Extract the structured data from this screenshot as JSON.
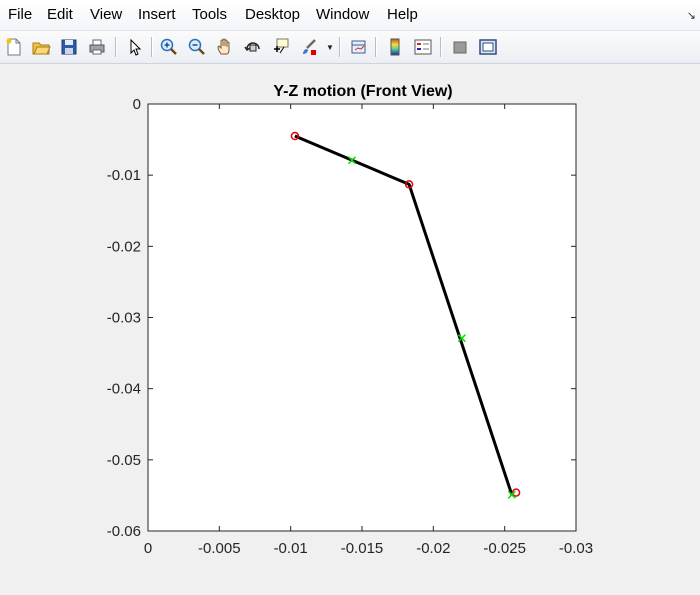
{
  "menu": {
    "items": [
      "File",
      "Edit",
      "View",
      "Insert",
      "Tools",
      "Desktop",
      "Window",
      "Help"
    ]
  },
  "toolbar": {
    "buttons": [
      "new-figure-icon",
      "open-file-icon",
      "save-icon",
      "print-icon",
      "edit-plot-icon",
      "zoom-in-icon",
      "zoom-out-icon",
      "pan-icon",
      "rotate-3d-icon",
      "data-cursor-icon",
      "brush-icon",
      "link-plot-icon",
      "colorbar-icon",
      "legend-icon",
      "hide-plot-tools-icon",
      "show-plot-tools-icon"
    ]
  },
  "colors": {
    "segment": "#000000",
    "joint_marker": "#e8000b",
    "mid_marker": "#00e000"
  },
  "chart_data": {
    "type": "line",
    "title": "Y-Z motion (Front View)",
    "xlabel": "",
    "ylabel": "",
    "x_direction": "reversed",
    "xlim": [
      0,
      -0.03
    ],
    "ylim": [
      -0.06,
      0
    ],
    "xticks": [
      "0",
      "-0.005",
      "-0.01",
      "-0.015",
      "-0.02",
      "-0.025",
      "-0.03"
    ],
    "yticks": [
      "0",
      "-0.01",
      "-0.02",
      "-0.03",
      "-0.04",
      "-0.05",
      "-0.06"
    ],
    "grid": false,
    "segments": [
      {
        "x": [
          -0.0103,
          -0.0183,
          -0.0255
        ],
        "y": [
          -0.0045,
          -0.0113,
          -0.0549
        ]
      }
    ],
    "joint_markers": {
      "marker": "o",
      "x": [
        -0.0103,
        -0.0183,
        -0.0258
      ],
      "y": [
        -0.0045,
        -0.0113,
        -0.0546
      ]
    },
    "mid_markers": {
      "marker": "x",
      "x": [
        -0.0143,
        -0.022,
        -0.0255
      ],
      "y": [
        -0.0079,
        -0.0329,
        -0.0549
      ]
    }
  }
}
